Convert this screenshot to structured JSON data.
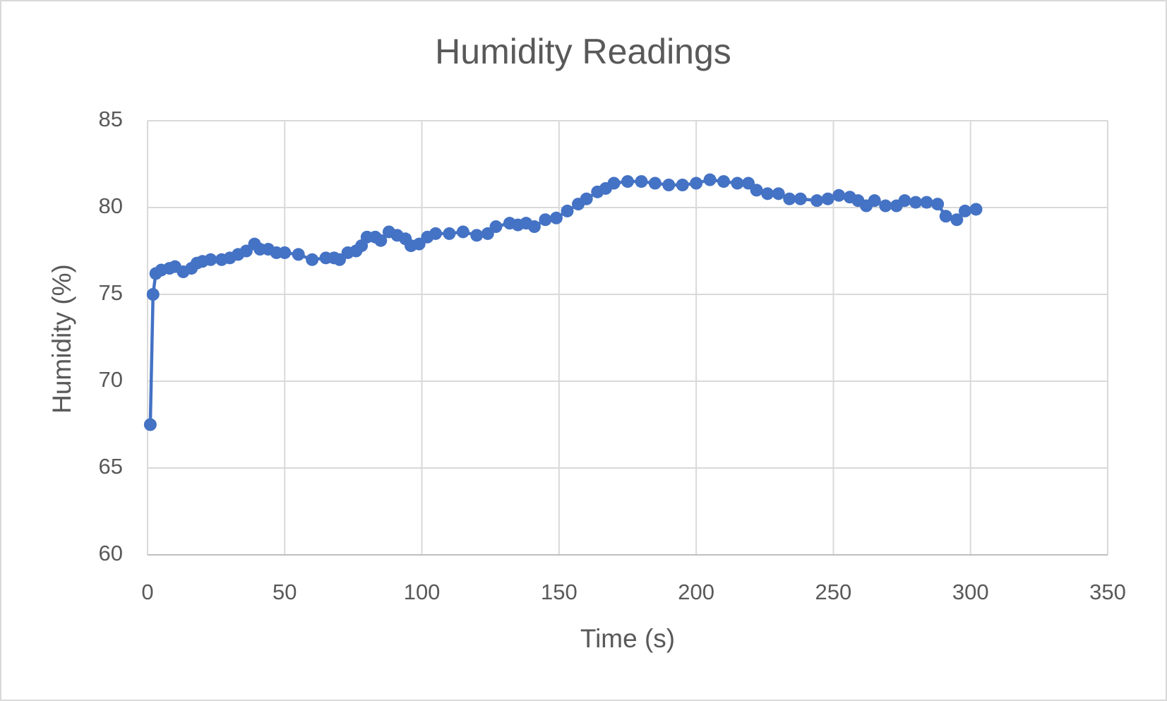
{
  "chart_data": {
    "type": "scatter-line",
    "title": "Humidity Readings",
    "x_label": "Time (s)",
    "y_label": "Humidity (%)",
    "series": [
      {
        "name": "Humidity",
        "color": "#4472c4",
        "x": [
          1,
          2,
          3,
          5,
          8,
          10,
          13,
          16,
          18,
          20,
          23,
          27,
          30,
          33,
          36,
          39,
          41,
          44,
          47,
          50,
          55,
          60,
          65,
          68,
          70,
          73,
          76,
          78,
          80,
          83,
          85,
          88,
          91,
          94,
          96,
          99,
          102,
          105,
          110,
          115,
          120,
          124,
          127,
          132,
          135,
          138,
          141,
          145,
          149,
          153,
          157,
          160,
          164,
          167,
          170,
          175,
          180,
          185,
          190,
          195,
          200,
          205,
          210,
          215,
          219,
          222,
          226,
          230,
          234,
          238,
          244,
          248,
          252,
          256,
          259,
          262,
          265,
          269,
          273,
          276,
          280,
          284,
          288,
          291,
          295,
          298,
          302
        ],
        "values": [
          67.5,
          75,
          76.2,
          76.4,
          76.5,
          76.6,
          76.3,
          76.5,
          76.8,
          76.9,
          77,
          77,
          77.1,
          77.3,
          77.5,
          77.9,
          77.6,
          77.6,
          77.4,
          77.4,
          77.3,
          77,
          77.1,
          77.1,
          77,
          77.4,
          77.5,
          77.8,
          78.3,
          78.3,
          78.1,
          78.6,
          78.4,
          78.2,
          77.8,
          77.9,
          78.3,
          78.5,
          78.5,
          78.6,
          78.4,
          78.5,
          78.9,
          79.1,
          79,
          79.1,
          78.9,
          79.3,
          79.4,
          79.8,
          80.2,
          80.5,
          80.9,
          81.1,
          81.4,
          81.5,
          81.5,
          81.4,
          81.3,
          81.3,
          81.4,
          81.6,
          81.5,
          81.4,
          81.4,
          81,
          80.8,
          80.8,
          80.5,
          80.5,
          80.4,
          80.5,
          80.7,
          80.6,
          80.4,
          80.1,
          80.4,
          80.1,
          80.1,
          80.4,
          80.3,
          80.3,
          80.2,
          79.5,
          79.3,
          79.8,
          79.9
        ]
      }
    ],
    "xlim": [
      0,
      350
    ],
    "xticks": [
      0,
      50,
      100,
      150,
      200,
      250,
      300,
      350
    ],
    "ylim": [
      60,
      85
    ],
    "yticks": [
      60,
      65,
      70,
      75,
      80,
      85
    ],
    "grid": true
  }
}
